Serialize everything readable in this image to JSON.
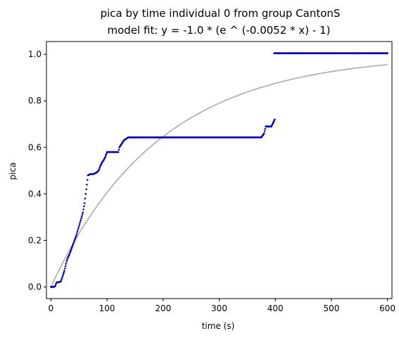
{
  "chart_data": {
    "type": "scatter",
    "title": "pica by time individual 0 from group CantonS",
    "subtitle": "model fit: y = -1.0 * (e ^ (-0.0052 * x) - 1)",
    "xlabel": "time (s)",
    "ylabel": "pica",
    "xlim": [
      -8,
      608
    ],
    "ylim": [
      -0.05,
      1.055
    ],
    "x_ticks": [
      0,
      100,
      200,
      300,
      400,
      500,
      600
    ],
    "y_ticks": [
      0.0,
      0.2,
      0.4,
      0.6,
      0.8,
      1.0
    ],
    "x_tick_labels": [
      "0",
      "100",
      "200",
      "300",
      "400",
      "500",
      "600"
    ],
    "y_tick_labels": [
      "0.0",
      "0.2",
      "0.4",
      "0.6",
      "0.8",
      "1.0"
    ],
    "grid": false,
    "legend": "none",
    "series": [
      {
        "style": "points",
        "color": "#0000cc",
        "segments": [
          [
            0,
            0.0
          ],
          [
            5,
            0.0
          ],
          [
            8,
            0.005
          ],
          [
            10,
            0.02
          ],
          [
            14,
            0.02
          ],
          [
            18,
            0.025
          ],
          [
            20,
            0.04
          ],
          [
            22,
            0.055
          ],
          [
            24,
            0.07
          ],
          [
            26,
            0.09
          ],
          [
            28,
            0.11
          ],
          [
            30,
            0.125
          ],
          [
            33,
            0.14
          ],
          [
            36,
            0.16
          ],
          [
            39,
            0.18
          ],
          [
            42,
            0.2
          ],
          [
            45,
            0.22
          ],
          [
            48,
            0.245
          ],
          [
            51,
            0.27
          ],
          [
            54,
            0.295
          ],
          [
            57,
            0.32
          ],
          [
            60,
            0.36
          ],
          [
            63,
            0.42
          ],
          [
            66,
            0.48
          ],
          [
            70,
            0.485
          ],
          [
            75,
            0.485
          ],
          [
            80,
            0.49
          ],
          [
            85,
            0.5
          ],
          [
            88,
            0.52
          ],
          [
            91,
            0.535
          ],
          [
            94,
            0.545
          ],
          [
            97,
            0.56
          ],
          [
            100,
            0.58
          ],
          [
            105,
            0.58
          ],
          [
            110,
            0.58
          ],
          [
            115,
            0.58
          ],
          [
            120,
            0.58
          ],
          [
            122,
            0.6
          ],
          [
            126,
            0.615
          ],
          [
            130,
            0.63
          ],
          [
            133,
            0.635
          ],
          [
            138,
            0.643
          ],
          [
            160,
            0.643
          ],
          [
            200,
            0.643
          ],
          [
            250,
            0.643
          ],
          [
            300,
            0.643
          ],
          [
            350,
            0.643
          ],
          [
            375,
            0.643
          ],
          [
            380,
            0.66
          ],
          [
            383,
            0.69
          ],
          [
            390,
            0.69
          ],
          [
            393,
            0.69
          ],
          [
            396,
            0.705
          ],
          [
            399,
            0.72
          ]
        ],
        "segments_2": [
          [
            398,
            1.005
          ],
          [
            600,
            1.005
          ]
        ]
      },
      {
        "style": "line",
        "color": "#aaaaaa",
        "function": "y = -1.0 * (e ^ (-0.0052 * x) - 1)",
        "coef_a": -1.0,
        "coef_b": -0.0052,
        "x_range": [
          0,
          600
        ]
      }
    ]
  }
}
